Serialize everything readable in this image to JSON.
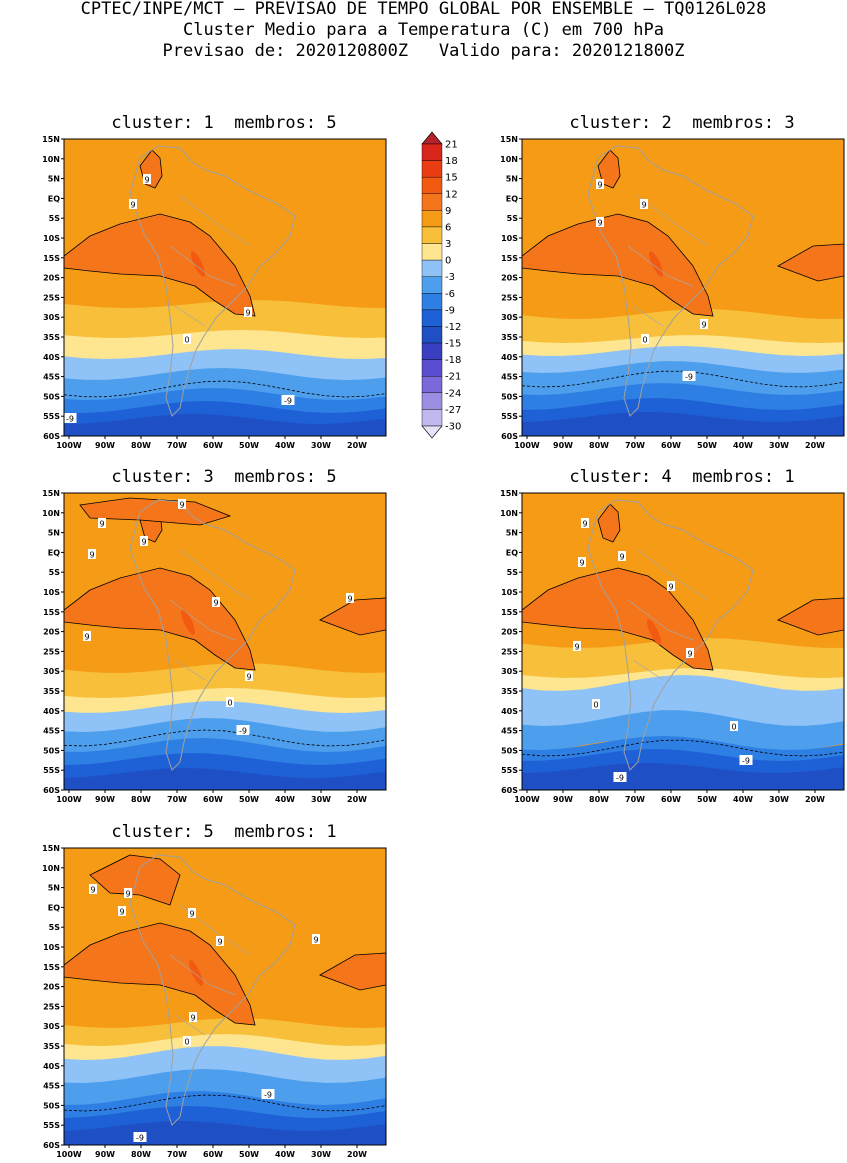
{
  "header": {
    "line1": "CPTEC/INPE/MCT – PREVISAO DE TEMPO GLOBAL POR ENSEMBLE – TQ0126L028",
    "line2": "Cluster Medio para a Temperatura (C) em 700 hPa",
    "line3": "Previsao de: 2020120800Z   Valido para: 2020121800Z"
  },
  "panels": [
    {
      "title": "cluster: 1  membros: 5"
    },
    {
      "title": "cluster: 2  membros: 3"
    },
    {
      "title": "cluster: 3  membros: 5"
    },
    {
      "title": "cluster: 4  membros: 1"
    },
    {
      "title": "cluster: 5  membros: 1"
    }
  ],
  "axes": {
    "lat_labels": [
      "15N",
      "10N",
      "5N",
      "EQ",
      "5S",
      "10S",
      "15S",
      "20S",
      "25S",
      "30S",
      "35S",
      "40S",
      "45S",
      "50S",
      "55S",
      "60S"
    ],
    "lon_labels": [
      "100W",
      "90W",
      "80W",
      "70W",
      "60W",
      "50W",
      "40W",
      "30W",
      "20W"
    ]
  },
  "colorbar": {
    "levels": [
      "21",
      "18",
      "15",
      "12",
      "9",
      "6",
      "3",
      "0",
      "-3",
      "-6",
      "-9",
      "-12",
      "-15",
      "-18",
      "-21",
      "-24",
      "-27",
      "-30"
    ],
    "colors": [
      "#b4232a",
      "#d9261c",
      "#ea3d14",
      "#f25a12",
      "#f5761a",
      "#f59b16",
      "#f7bf3a",
      "#fde68f",
      "#8fc3f7",
      "#4d9fed",
      "#2e7fe3",
      "#1e60d6",
      "#1f4fc4",
      "#3a3ec0",
      "#5a4ed0",
      "#7a6ad9",
      "#9c8ee3",
      "#c2b8ef",
      "#e6e2f8"
    ]
  },
  "contour_labels": {
    "p1": [
      "9",
      "9",
      "9",
      "0",
      "-9",
      "-9"
    ],
    "p2": [
      "9",
      "9",
      "9",
      "9",
      "0",
      "-9"
    ],
    "p3": [
      "9",
      "9",
      "9",
      "9",
      "9",
      "9",
      "9",
      "9",
      "0",
      "-9"
    ],
    "p4": [
      "9",
      "9",
      "9",
      "9",
      "9",
      "9",
      "0",
      "0",
      "-9",
      "-9"
    ],
    "p5": [
      "9",
      "9",
      "9",
      "9",
      "9",
      "9",
      "9",
      "0",
      "-9",
      "-9"
    ]
  }
}
